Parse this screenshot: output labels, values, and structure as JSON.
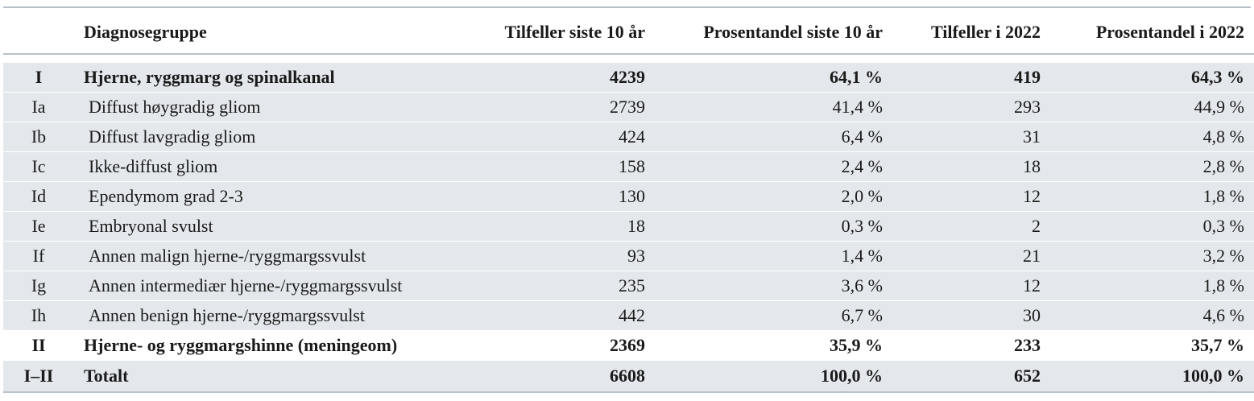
{
  "table": {
    "headers": {
      "code": "",
      "group": "Diagnosegruppe",
      "cases_10y": "Tilfeller siste 10 år",
      "pct_10y": "Prosentandel siste 10 år",
      "cases_2022": "Tilfeller i 2022",
      "pct_2022": "Prosentandel i 2022"
    },
    "rows": [
      {
        "code": "I",
        "group": "Hjerne, ryggmarg og spinalkanal",
        "cases_10y": "4239",
        "pct_10y": "64,1 %",
        "cases_2022": "419",
        "pct_2022": "64,3 %"
      },
      {
        "code": "Ia",
        "group": "Diffust høygradig gliom",
        "cases_10y": "2739",
        "pct_10y": "41,4 %",
        "cases_2022": "293",
        "pct_2022": "44,9 %"
      },
      {
        "code": "Ib",
        "group": "Diffust lavgradig gliom",
        "cases_10y": "424",
        "pct_10y": "6,4 %",
        "cases_2022": "31",
        "pct_2022": "4,8 %"
      },
      {
        "code": "Ic",
        "group": "Ikke-diffust gliom",
        "cases_10y": "158",
        "pct_10y": "2,4 %",
        "cases_2022": "18",
        "pct_2022": "2,8 %"
      },
      {
        "code": "Id",
        "group": "Ependymom grad 2-3",
        "cases_10y": "130",
        "pct_10y": "2,0 %",
        "cases_2022": "12",
        "pct_2022": "1,8 %"
      },
      {
        "code": "Ie",
        "group": "Embryonal svulst",
        "cases_10y": "18",
        "pct_10y": "0,3 %",
        "cases_2022": "2",
        "pct_2022": "0,3 %"
      },
      {
        "code": "If",
        "group": "Annen malign hjerne-/ryggmargssvulst",
        "cases_10y": "93",
        "pct_10y": "1,4 %",
        "cases_2022": "21",
        "pct_2022": "3,2 %"
      },
      {
        "code": "Ig",
        "group": "Annen intermediær hjerne-/ryggmargssvulst",
        "cases_10y": "235",
        "pct_10y": "3,6 %",
        "cases_2022": "12",
        "pct_2022": "1,8 %"
      },
      {
        "code": "Ih",
        "group": "Annen benign hjerne-/ryggmargssvulst",
        "cases_10y": "442",
        "pct_10y": "6,7 %",
        "cases_2022": "30",
        "pct_2022": "4,6 %"
      },
      {
        "code": "II",
        "group": "Hjerne- og ryggmargshinne (meningeom)",
        "cases_10y": "2369",
        "pct_10y": "35,9 %",
        "cases_2022": "233",
        "pct_2022": "35,7 %"
      },
      {
        "code": "I–II",
        "group": "Totalt",
        "cases_10y": "6608",
        "pct_10y": "100,0 %",
        "cases_2022": "652",
        "pct_2022": "100,0 %"
      }
    ]
  },
  "style": {
    "shade_color": "#e4e8ec",
    "rule_color": "#b9c2cc"
  }
}
